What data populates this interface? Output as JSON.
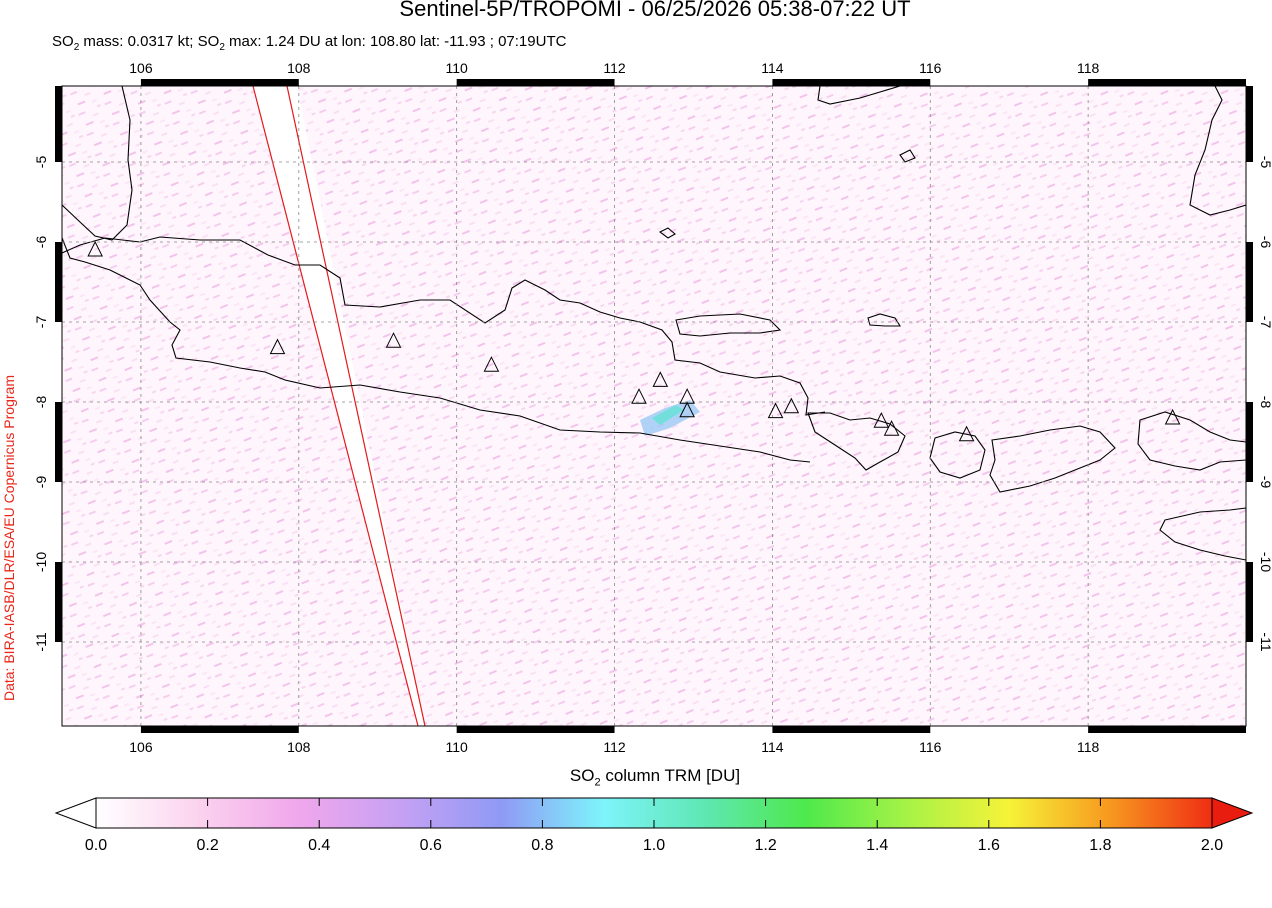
{
  "title": "Sentinel-5P/TROPOMI - 06/25/2026 05:38-07:22 UT",
  "subtitle": {
    "prefix": "SO",
    "sub1": "2",
    "mid1": " mass: 0.0317 kt; SO",
    "sub2": "2",
    "rest": " max: 1.24 DU at lon: 108.80 lat: -11.93 ; 07:19UTC"
  },
  "credit": "Data: BIRA-IASB/DLR/ESA/EU Copernicus Program",
  "map": {
    "lon_range": [
      105.0,
      120.0
    ],
    "lat_range": [
      -12.05,
      -4.05
    ],
    "lon_ticks": [
      106,
      108,
      110,
      112,
      114,
      116,
      118
    ],
    "lat_ticks": [
      -5,
      -6,
      -7,
      -8,
      -9,
      -10,
      -11
    ],
    "lon_tick_labels": [
      "106",
      "108",
      "110",
      "112",
      "114",
      "116",
      "118"
    ],
    "lat_tick_labels": [
      "-5",
      "-6",
      "-7",
      "-8",
      "-9",
      "-10",
      "-11"
    ],
    "volcanoes": [
      {
        "lon": 105.42,
        "lat": -6.1
      },
      {
        "lon": 107.73,
        "lat": -7.32
      },
      {
        "lon": 109.2,
        "lat": -7.24
      },
      {
        "lon": 110.44,
        "lat": -7.54
      },
      {
        "lon": 112.31,
        "lat": -7.94
      },
      {
        "lon": 112.58,
        "lat": -7.73
      },
      {
        "lon": 112.92,
        "lat": -7.94
      },
      {
        "lon": 112.92,
        "lat": -8.11
      },
      {
        "lon": 114.04,
        "lat": -8.12
      },
      {
        "lon": 114.24,
        "lat": -8.06
      },
      {
        "lon": 115.38,
        "lat": -8.24
      },
      {
        "lon": 115.51,
        "lat": -8.34
      },
      {
        "lon": 116.46,
        "lat": -8.41
      },
      {
        "lon": 119.07,
        "lat": -8.2
      }
    ]
  },
  "colorbar": {
    "label_prefix": "SO",
    "label_sub": "2",
    "label_suffix": " column TRM [DU]",
    "min": 0.0,
    "max": 2.0,
    "tick_labels": [
      "0.0",
      "0.2",
      "0.4",
      "0.6",
      "0.8",
      "1.0",
      "1.2",
      "1.4",
      "1.6",
      "1.8",
      "2.0"
    ],
    "colors": [
      "#ffffff",
      "#fbd3ee",
      "#f0a7ec",
      "#c6a1f3",
      "#8f9af5",
      "#7ef4fb",
      "#5fe7b3",
      "#4ee94b",
      "#a7f247",
      "#f6f338",
      "#f7981f",
      "#ef2d14"
    ]
  }
}
